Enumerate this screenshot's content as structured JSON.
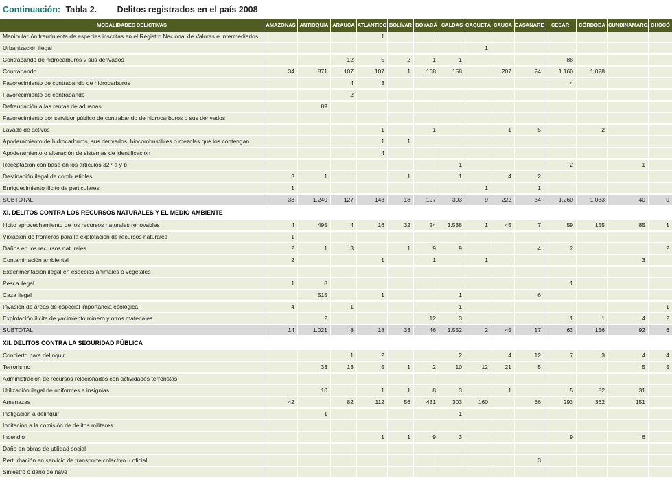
{
  "header": {
    "continuation_label": "Continuación:",
    "table_label": "Tabla 2.",
    "title": "Delitos registrados en el país 2008"
  },
  "colors": {
    "header_bg": "#4f5e20",
    "row_bg": "#ebeedd",
    "subtotal_bg": "#d9d9d9",
    "accent_teal": "#0e7c72"
  },
  "table": {
    "modalities_header": "MODALIDADES DELICTIVAS",
    "columns": [
      "AMAZONAS",
      "ANTIOQUIA",
      "ARAUCA",
      "ATLÁNTICO",
      "BOLÍVAR",
      "BOYACÁ",
      "CALDAS",
      "CAQUETÁ",
      "CAUCA",
      "CASANARE",
      "CESAR",
      "CÓRDOBA",
      "CUNDINAMARCA",
      "CHOCÓ"
    ],
    "rows": [
      {
        "type": "data",
        "label": "Manipulación fraudulenta de especies inscritas en el Registro Nacional de Valores e Intermediarios",
        "values": [
          "",
          "",
          "",
          "1",
          "",
          "",
          "",
          "",
          "",
          "",
          "",
          "",
          "",
          ""
        ]
      },
      {
        "type": "data",
        "label": "Urbanización ilegal",
        "values": [
          "",
          "",
          "",
          "",
          "",
          "",
          "",
          "1",
          "",
          "",
          "",
          "",
          "",
          ""
        ]
      },
      {
        "type": "data",
        "label": "Contrabando de hidrocarburos y sus derivados",
        "values": [
          "",
          "",
          "12",
          "5",
          "2",
          "1",
          "1",
          "",
          "",
          "",
          "88",
          "",
          "",
          ""
        ]
      },
      {
        "type": "data",
        "label": "Contrabando",
        "values": [
          "34",
          "871",
          "107",
          "107",
          "1",
          "168",
          "158",
          "",
          "207",
          "24",
          "1.160",
          "1.028",
          "",
          ""
        ]
      },
      {
        "type": "data",
        "label": "Favorecimiento de contrabando de hidrocarburos",
        "values": [
          "",
          "",
          "4",
          "3",
          "",
          "",
          "",
          "",
          "",
          "",
          "4",
          "",
          "",
          ""
        ]
      },
      {
        "type": "data",
        "label": "Favorecimiento de contrabando",
        "values": [
          "",
          "",
          "2",
          "",
          "",
          "",
          "",
          "",
          "",
          "",
          "",
          "",
          "",
          ""
        ]
      },
      {
        "type": "data",
        "label": "Defraudación a las rentas de aduanas",
        "values": [
          "",
          "89",
          "",
          "",
          "",
          "",
          "",
          "",
          "",
          "",
          "",
          "",
          "",
          ""
        ]
      },
      {
        "type": "data",
        "label": "Favorecimiento por servidor público de contrabando de hidrocarburos o sus derivados",
        "values": [
          "",
          "",
          "",
          "",
          "",
          "",
          "",
          "",
          "",
          "",
          "",
          "",
          "",
          ""
        ]
      },
      {
        "type": "data",
        "label": "Lavado de activos",
        "values": [
          "",
          "",
          "",
          "1",
          "",
          "1",
          "",
          "",
          "1",
          "5",
          "",
          "2",
          "",
          ""
        ]
      },
      {
        "type": "data",
        "label": "Apoderamiento de hidrocarburos, sus derivados, biocombustibles o mezclas que los contengan",
        "values": [
          "",
          "",
          "",
          "1",
          "1",
          "",
          "",
          "",
          "",
          "",
          "",
          "",
          "",
          ""
        ]
      },
      {
        "type": "data",
        "label": "Apoderamiento o alteración de sistemas de identificación",
        "values": [
          "",
          "",
          "",
          "4",
          "",
          "",
          "",
          "",
          "",
          "",
          "",
          "",
          "",
          ""
        ]
      },
      {
        "type": "data",
        "label": "Receptación con base en los artículos 327 a y b",
        "values": [
          "",
          "",
          "",
          "",
          "",
          "",
          "1",
          "",
          "",
          "",
          "2",
          "",
          "1",
          ""
        ]
      },
      {
        "type": "data",
        "label": "Destinación ilegal de combustibles",
        "values": [
          "3",
          "1",
          "",
          "",
          "1",
          "",
          "1",
          "",
          "4",
          "2",
          "",
          "",
          "",
          ""
        ]
      },
      {
        "type": "data",
        "label": "Enriquecimiento ilícito de particulares",
        "values": [
          "1",
          "",
          "",
          "",
          "",
          "",
          "",
          "1",
          "",
          "1",
          "",
          "",
          "",
          ""
        ]
      },
      {
        "type": "subtotal",
        "label": "SUBTOTAL",
        "values": [
          "38",
          "1.240",
          "127",
          "143",
          "18",
          "197",
          "303",
          "9",
          "222",
          "34",
          "1.260",
          "1.033",
          "40",
          "0"
        ]
      },
      {
        "type": "section",
        "label": "XI. DELITOS CONTRA LOS RECURSOS NATURALES Y EL MEDIO AMBIENTE"
      },
      {
        "type": "data",
        "label": "Ilícito aprovechamiento de los recursos naturales renovables",
        "values": [
          "4",
          "495",
          "4",
          "16",
          "32",
          "24",
          "1.538",
          "1",
          "45",
          "7",
          "59",
          "155",
          "85",
          "1"
        ]
      },
      {
        "type": "data",
        "label": "Violación de fronteras para la explotación de recursos naturales",
        "values": [
          "1",
          "",
          "",
          "",
          "",
          "",
          "",
          "",
          "",
          "",
          "",
          "",
          "",
          ""
        ]
      },
      {
        "type": "data",
        "label": "Daños en los recursos naturales",
        "values": [
          "2",
          "1",
          "3",
          "",
          "1",
          "9",
          "9",
          "",
          "",
          "4",
          "2",
          "",
          "",
          "2"
        ]
      },
      {
        "type": "data",
        "label": "Contaminación ambiental",
        "values": [
          "2",
          "",
          "",
          "1",
          "",
          "1",
          "",
          "1",
          "",
          "",
          "",
          "",
          "3",
          ""
        ]
      },
      {
        "type": "data",
        "label": "Experimentación ilegal en especies animales o vegetales",
        "values": [
          "",
          "",
          "",
          "",
          "",
          "",
          "",
          "",
          "",
          "",
          "",
          "",
          "",
          ""
        ]
      },
      {
        "type": "data",
        "label": "Pesca ilegal",
        "values": [
          "1",
          "8",
          "",
          "",
          "",
          "",
          "",
          "",
          "",
          "",
          "1",
          "",
          "",
          ""
        ]
      },
      {
        "type": "data",
        "label": "Caza ilegal",
        "values": [
          "",
          "515",
          "",
          "1",
          "",
          "",
          "1",
          "",
          "",
          "6",
          "",
          "",
          "",
          ""
        ]
      },
      {
        "type": "data",
        "label": "Invasión de áreas de especial importancia ecológica",
        "values": [
          "4",
          "",
          "1",
          "",
          "",
          "",
          "1",
          "",
          "",
          "",
          "",
          "",
          "",
          "1"
        ]
      },
      {
        "type": "data",
        "label": "Explotación ilícita de yacimiento minero y otros materiales",
        "values": [
          "",
          "2",
          "",
          "",
          "",
          "12",
          "3",
          "",
          "",
          "",
          "1",
          "1",
          "4",
          "2"
        ]
      },
      {
        "type": "subtotal",
        "label": "SUBTOTAL",
        "values": [
          "14",
          "1.021",
          "8",
          "18",
          "33",
          "46",
          "1.552",
          "2",
          "45",
          "17",
          "63",
          "156",
          "92",
          "6"
        ]
      },
      {
        "type": "section",
        "label": "XII. DELITOS CONTRA LA SEGURIDAD PÚBLICA"
      },
      {
        "type": "data",
        "label": "Concierto para delinquir",
        "values": [
          "",
          "",
          "1",
          "2",
          "",
          "",
          "2",
          "",
          "4",
          "12",
          "7",
          "3",
          "4",
          "4"
        ]
      },
      {
        "type": "data",
        "label": "Terrorismo",
        "values": [
          "",
          "33",
          "13",
          "5",
          "1",
          "2",
          "10",
          "12",
          "21",
          "5",
          "",
          "",
          "5",
          "5"
        ]
      },
      {
        "type": "data",
        "label": "Administración de recursos relacionados con actividades terroristas",
        "values": [
          "",
          "",
          "",
          "",
          "",
          "",
          "",
          "",
          "",
          "",
          "",
          "",
          "",
          ""
        ]
      },
      {
        "type": "data",
        "label": "Utilización ilegal de uniformes e insignias",
        "values": [
          "",
          "10",
          "",
          "1",
          "1",
          "8",
          "3",
          "",
          "1",
          "",
          "5",
          "82",
          "31",
          ""
        ]
      },
      {
        "type": "data",
        "label": "Amenazas",
        "values": [
          "42",
          "",
          "82",
          "112",
          "56",
          "431",
          "303",
          "160",
          "",
          "66",
          "293",
          "362",
          "151",
          ""
        ]
      },
      {
        "type": "data",
        "label": "Instigación a delinquir",
        "values": [
          "",
          "1",
          "",
          "",
          "",
          "",
          "1",
          "",
          "",
          "",
          "",
          "",
          "",
          ""
        ]
      },
      {
        "type": "data",
        "label": "Incitación a la comisión de delitos militares",
        "values": [
          "",
          "",
          "",
          "",
          "",
          "",
          "",
          "",
          "",
          "",
          "",
          "",
          "",
          ""
        ]
      },
      {
        "type": "data",
        "label": "Incendio",
        "values": [
          "",
          "",
          "",
          "1",
          "1",
          "9",
          "3",
          "",
          "",
          "",
          "9",
          "",
          "6",
          ""
        ]
      },
      {
        "type": "data",
        "label": "Daño en obras de utilidad social",
        "values": [
          "",
          "",
          "",
          "",
          "",
          "",
          "",
          "",
          "",
          "",
          "",
          "",
          "",
          ""
        ]
      },
      {
        "type": "data",
        "label": "Perturbación en servicio de transporte colectivo u oficial",
        "values": [
          "",
          "",
          "",
          "",
          "",
          "",
          "",
          "",
          "",
          "3",
          "",
          "",
          "",
          ""
        ]
      },
      {
        "type": "data",
        "label": "Siniestro o daño de nave",
        "values": [
          "",
          "",
          "",
          "",
          "",
          "",
          "",
          "",
          "",
          "",
          "",
          "",
          "",
          ""
        ]
      }
    ]
  }
}
